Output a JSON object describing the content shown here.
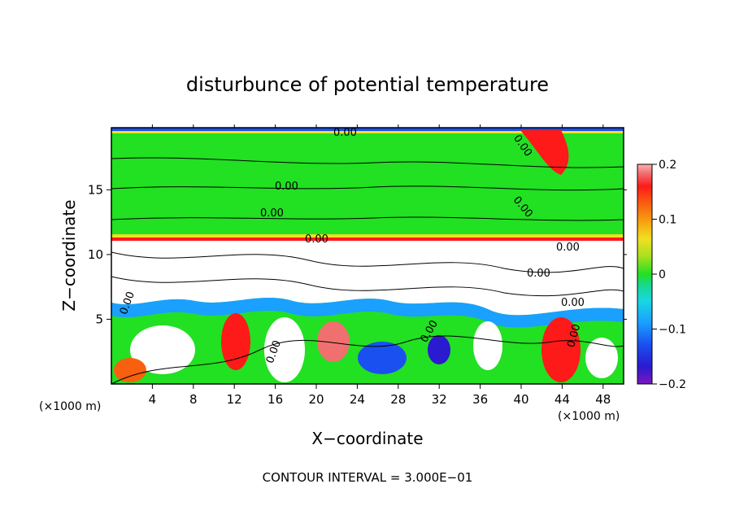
{
  "chart_data": {
    "type": "heatmap",
    "title": "disturbunce of potential temperature",
    "xlabel": "X−coordinate",
    "ylabel": "Z−coordinate",
    "x_unit_left": "(×1000 m)",
    "x_unit_right": "(×1000 m)",
    "xlim": [
      0,
      50
    ],
    "ylim": [
      0,
      19.8
    ],
    "x_ticks": [
      4,
      8,
      12,
      16,
      20,
      24,
      28,
      32,
      36,
      40,
      44,
      48
    ],
    "y_ticks": [
      5,
      10,
      15
    ],
    "colorbar": {
      "range": [
        -0.2,
        0.2
      ],
      "ticks": [
        "0.2",
        "0.1",
        "0",
        "−0.1",
        "−0.2"
      ],
      "colors": [
        "#7b18c0",
        "#2a1ad0",
        "#1a50f0",
        "#1aa0ff",
        "#18d8e0",
        "#18d890",
        "#22e022",
        "#22e022",
        "#a8e020",
        "#f0e020",
        "#f8a010",
        "#f86010",
        "#ff1a1a",
        "#f07070",
        "#ffb0b0"
      ]
    },
    "contour_labels": [
      "0.00",
      "0.00",
      "0.00",
      "0.00",
      "0.00",
      "0.00",
      "0.00",
      "0.00",
      "0.00",
      "0.00",
      "0.00",
      "0.00",
      "0.00"
    ],
    "contour_interval": "CONTOUR INTERVAL = 3.000E−01"
  }
}
